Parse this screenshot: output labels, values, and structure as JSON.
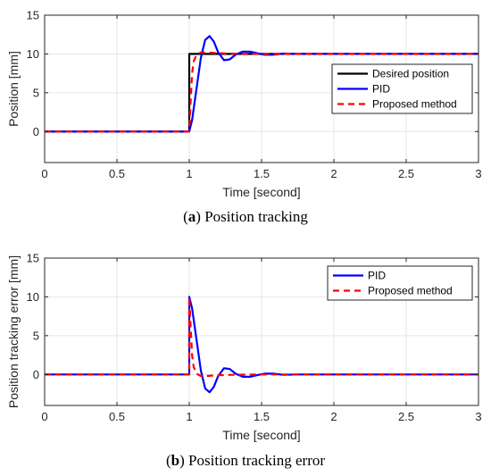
{
  "captions": [
    {
      "letter": "a",
      "text": "Position tracking"
    },
    {
      "letter": "b",
      "text": "Position tracking error"
    }
  ],
  "colors": {
    "desired": "#000000",
    "pid": "#0000ff",
    "proposed": "#ff0000"
  },
  "chart_data": [
    {
      "type": "line",
      "xlabel": "Time [second]",
      "ylabel": "Position [mm]",
      "xlim": [
        0,
        3
      ],
      "ylim": [
        -4,
        15
      ],
      "xticks": [
        0,
        0.5,
        1,
        1.5,
        2,
        2.5,
        3
      ],
      "xtick_labels": [
        "0",
        "0.5",
        "1",
        "1.5",
        "2",
        "2.5",
        "3"
      ],
      "yticks": [
        0,
        5,
        10,
        15
      ],
      "ytick_labels": [
        "0",
        "5",
        "10",
        "15"
      ],
      "grid": true,
      "legend": "center-right",
      "series": [
        {
          "name": "Desired position",
          "style": "solid",
          "color": "#000000",
          "x": [
            0,
            1,
            1,
            3
          ],
          "y": [
            0,
            0,
            10,
            10
          ]
        },
        {
          "name": "PID",
          "style": "solid",
          "color": "#0000ff",
          "x": [
            0,
            1.0,
            1.02,
            1.05,
            1.08,
            1.11,
            1.14,
            1.17,
            1.2,
            1.24,
            1.28,
            1.32,
            1.37,
            1.42,
            1.47,
            1.52,
            1.58,
            1.65,
            1.75,
            1.9,
            2.2,
            3.0
          ],
          "y": [
            0,
            0,
            1.5,
            5.5,
            9.5,
            11.8,
            12.3,
            11.6,
            10.2,
            9.2,
            9.3,
            9.9,
            10.3,
            10.3,
            10.1,
            9.9,
            9.9,
            10.05,
            10.0,
            10.0,
            10.0,
            10.0
          ]
        },
        {
          "name": "Proposed method",
          "style": "dashed",
          "color": "#ff0000",
          "x": [
            0,
            1.0,
            1.01,
            1.02,
            1.03,
            1.05,
            1.08,
            1.12,
            1.2,
            1.3,
            1.5,
            3.0
          ],
          "y": [
            0,
            0,
            4.0,
            7.5,
            9.0,
            9.9,
            10.2,
            10.2,
            10.1,
            10.05,
            10.0,
            10.0
          ]
        }
      ]
    },
    {
      "type": "line",
      "xlabel": "Time [second]",
      "ylabel": "Position tracking error [mm]",
      "xlim": [
        0,
        3
      ],
      "ylim": [
        -4,
        15
      ],
      "xticks": [
        0,
        0.5,
        1,
        1.5,
        2,
        2.5,
        3
      ],
      "xtick_labels": [
        "0",
        "0.5",
        "1",
        "1.5",
        "2",
        "2.5",
        "3"
      ],
      "yticks": [
        0,
        5,
        10,
        15
      ],
      "ytick_labels": [
        "0",
        "5",
        "10",
        "15"
      ],
      "grid": true,
      "legend": "top-right",
      "series": [
        {
          "name": "PID",
          "style": "solid",
          "color": "#0000ff",
          "x": [
            0,
            1.0,
            1.0,
            1.02,
            1.05,
            1.08,
            1.11,
            1.14,
            1.17,
            1.2,
            1.24,
            1.28,
            1.32,
            1.37,
            1.42,
            1.47,
            1.52,
            1.58,
            1.65,
            1.75,
            1.9,
            2.2,
            3.0
          ],
          "y": [
            0,
            0,
            10.0,
            8.5,
            4.5,
            0.5,
            -1.8,
            -2.3,
            -1.6,
            -0.2,
            0.8,
            0.7,
            0.1,
            -0.3,
            -0.3,
            -0.1,
            0.1,
            0.1,
            -0.05,
            0.0,
            0.0,
            0.0,
            0.0
          ]
        },
        {
          "name": "Proposed method",
          "style": "dashed",
          "color": "#ff0000",
          "x": [
            0,
            1.0,
            1.0,
            1.01,
            1.02,
            1.03,
            1.05,
            1.08,
            1.12,
            1.2,
            1.3,
            1.5,
            3.0
          ],
          "y": [
            0,
            0,
            10.0,
            6.0,
            2.5,
            1.0,
            0.1,
            -0.2,
            -0.2,
            -0.1,
            -0.05,
            0.0,
            0.0
          ]
        }
      ]
    }
  ]
}
